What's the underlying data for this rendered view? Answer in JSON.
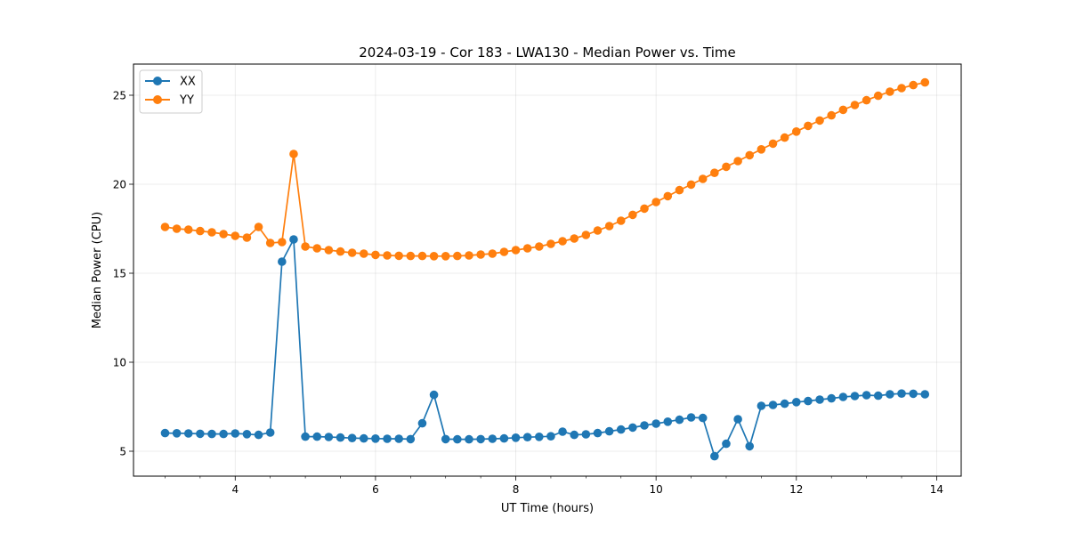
{
  "chart_data": {
    "type": "line",
    "title": "2024-03-19 - Cor 183 - LWA130 - Median Power vs. Time",
    "xlabel": "UT Time (hours)",
    "ylabel": "Median Power (CPU)",
    "xlim": [
      2.55,
      14.35
    ],
    "ylim": [
      3.6,
      26.75
    ],
    "xticks": [
      4,
      6,
      8,
      10,
      12,
      14
    ],
    "yticks": [
      5,
      10,
      15,
      20,
      25
    ],
    "grid": true,
    "legend_position": "top-left",
    "x": [
      3.0,
      3.1667,
      3.3333,
      3.5,
      3.6667,
      3.8333,
      4.0,
      4.1667,
      4.3333,
      4.5,
      4.6667,
      4.8333,
      5.0,
      5.1667,
      5.3333,
      5.5,
      5.6667,
      5.8333,
      6.0,
      6.1667,
      6.3333,
      6.5,
      6.6667,
      6.8333,
      7.0,
      7.1667,
      7.3333,
      7.5,
      7.6667,
      7.8333,
      8.0,
      8.1667,
      8.3333,
      8.5,
      8.6667,
      8.8333,
      9.0,
      9.1667,
      9.3333,
      9.5,
      9.6667,
      9.8333,
      10.0,
      10.1667,
      10.3333,
      10.5,
      10.6667,
      10.8333,
      11.0,
      11.1667,
      11.3333,
      11.5,
      11.6667,
      11.8333,
      12.0,
      12.1667,
      12.3333,
      12.5,
      12.6667,
      12.8333,
      13.0,
      13.1667,
      13.3333,
      13.5,
      13.6667,
      13.8333
    ],
    "series": [
      {
        "name": "XX",
        "color": "#1f77b4",
        "values": [
          6.02,
          6.01,
          6.0,
          5.98,
          5.97,
          5.97,
          6.0,
          5.96,
          5.92,
          6.05,
          15.65,
          16.9,
          5.82,
          5.82,
          5.8,
          5.77,
          5.74,
          5.72,
          5.71,
          5.7,
          5.7,
          5.68,
          6.57,
          8.17,
          5.68,
          5.67,
          5.67,
          5.68,
          5.7,
          5.72,
          5.76,
          5.79,
          5.81,
          5.84,
          6.1,
          5.92,
          5.95,
          6.02,
          6.12,
          6.22,
          6.33,
          6.45,
          6.55,
          6.66,
          6.77,
          6.9,
          6.87,
          4.72,
          5.42,
          6.8,
          5.28,
          7.55,
          7.6,
          7.67,
          7.76,
          7.82,
          7.9,
          7.97,
          8.05,
          8.1,
          8.15,
          8.12,
          8.2,
          8.24,
          8.23,
          8.2
        ]
      },
      {
        "name": "YY",
        "color": "#ff7f0e",
        "values": [
          17.6,
          17.5,
          17.45,
          17.37,
          17.3,
          17.2,
          17.1,
          17.0,
          17.6,
          16.7,
          16.75,
          21.7,
          16.5,
          16.4,
          16.3,
          16.22,
          16.15,
          16.1,
          16.03,
          16.0,
          15.98,
          15.97,
          15.97,
          15.96,
          15.96,
          15.97,
          16.0,
          16.05,
          16.1,
          16.2,
          16.3,
          16.4,
          16.5,
          16.65,
          16.8,
          16.95,
          17.15,
          17.4,
          17.65,
          17.95,
          18.28,
          18.63,
          19.0,
          19.33,
          19.67,
          19.98,
          20.3,
          20.64,
          20.98,
          21.3,
          21.63,
          21.96,
          22.28,
          22.62,
          22.96,
          23.28,
          23.58,
          23.87,
          24.18,
          24.45,
          24.72,
          24.97,
          25.2,
          25.4,
          25.57,
          25.72
        ]
      }
    ]
  }
}
